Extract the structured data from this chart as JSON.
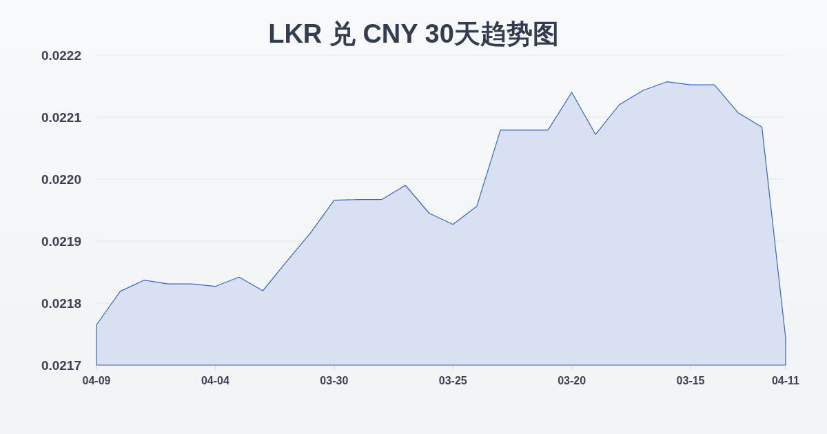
{
  "chart_data": {
    "type": "area",
    "title": "LKR 兑 CNY 30天趋势图",
    "categories": [
      "04-09",
      null,
      null,
      null,
      null,
      "04-04",
      null,
      null,
      null,
      null,
      "03-30",
      null,
      null,
      null,
      null,
      "03-25",
      null,
      null,
      null,
      null,
      "03-20",
      null,
      null,
      null,
      null,
      "03-15",
      null,
      null,
      null,
      "04-11"
    ],
    "values": [
      0.021765,
      0.021819,
      0.021837,
      0.021831,
      0.021831,
      0.021827,
      0.021842,
      0.02182,
      0.021867,
      0.021913,
      0.021966,
      0.021967,
      0.021967,
      0.02199,
      0.021945,
      0.021927,
      0.021956,
      0.022079,
      0.022079,
      0.022079,
      0.02214,
      0.022072,
      0.02212,
      0.022143,
      0.022157,
      0.022152,
      0.022152,
      0.022107,
      0.022084,
      0.021743
    ],
    "color": "#3366cc",
    "ylim": [
      0.0217,
      0.0222
    ],
    "yticks": [
      0.0217,
      0.0218,
      0.0219,
      {
        "value": 0.022,
        "label": "0.0220"
      },
      0.0221,
      0.0222
    ],
    "grid": "y"
  }
}
